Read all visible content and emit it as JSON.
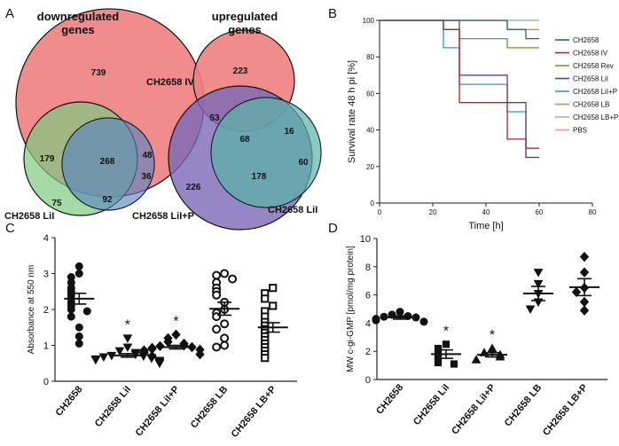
{
  "panel_labels": {
    "a": "A",
    "b": "B",
    "c": "C",
    "d": "D"
  },
  "chart_data": [
    {
      "panel": "A",
      "type": "venn",
      "title": "downregulated genes",
      "sets": [
        "CH2658 IV",
        "CH2658 LiI",
        "CH2658 LiI+P"
      ],
      "set_labels": [
        "CH2658 LiI",
        "CH2658 LiI+P"
      ],
      "regions": {
        "only_IV": 739,
        "IV_and_LiI": 179,
        "all_three": 268,
        "IV_and_LiIP": 48,
        "only_LiIP_a": 36,
        "only_LiI": 75,
        "LiI_and_LiIP": 92
      }
    },
    {
      "panel": "A",
      "type": "venn",
      "title": "upregulated genes",
      "sets": [
        "CH2658 IV",
        "CH2658 LiI+P",
        "CH2658 LiI"
      ],
      "set_labels": [
        "CH2658 IV",
        "CH2658 LiI"
      ],
      "regions": {
        "only_IV": 223,
        "IV_and_LiIP": 53,
        "all_three": 68,
        "IV_and_LiI": 16,
        "only_LiIP": 226,
        "LiI_and_LiIP": 178,
        "only_LiI": 60
      }
    },
    {
      "panel": "B",
      "type": "line",
      "step": true,
      "xlabel": "Time [h]",
      "ylabel": "Survival rate 48 h pi [%]",
      "xlim": [
        0,
        80
      ],
      "ylim": [
        0,
        100
      ],
      "xticks": [
        "0",
        "20",
        "40",
        "60",
        "80"
      ],
      "yticks": [
        "0",
        "20",
        "40",
        "60",
        "80",
        "100"
      ],
      "series": [
        {
          "name": "CH2658",
          "color": "#2b5f8c",
          "x": [
            0,
            48,
            55,
            60
          ],
          "y": [
            100,
            95,
            90,
            90
          ]
        },
        {
          "name": "CH2658 IV",
          "color": "#b22525",
          "x": [
            0,
            24,
            30,
            48,
            55,
            60
          ],
          "y": [
            100,
            95,
            55,
            35,
            30,
            30
          ]
        },
        {
          "name": "CH2658 Rev",
          "color": "#6f9a2d",
          "x": [
            0,
            24,
            30,
            48,
            60
          ],
          "y": [
            100,
            95,
            90,
            85,
            85
          ]
        },
        {
          "name": "CH2658 LiI",
          "color": "#5b3f8f",
          "x": [
            0,
            30,
            48,
            55,
            60
          ],
          "y": [
            100,
            70,
            55,
            25,
            25
          ]
        },
        {
          "name": "CH2658 LiI+P",
          "color": "#2a9fbd",
          "x": [
            0,
            24,
            30,
            48,
            55,
            60
          ],
          "y": [
            100,
            85,
            65,
            50,
            25,
            25
          ]
        },
        {
          "name": "CH2658 LB",
          "color": "#e38a2a",
          "x": [
            0,
            48,
            55,
            60
          ],
          "y": [
            100,
            95,
            95,
            95
          ]
        },
        {
          "name": "CH2658 LB+P",
          "color": "#8fb4da",
          "x": [
            0,
            60
          ],
          "y": [
            100,
            100
          ]
        },
        {
          "name": "PBS",
          "color": "#e79ab7",
          "x": [
            0,
            60
          ],
          "y": [
            100,
            100
          ]
        }
      ]
    },
    {
      "panel": "C",
      "type": "scatter",
      "ylabel": "Absorbance at 550 nm",
      "ylim": [
        0,
        4
      ],
      "yticks": [
        "0",
        "1",
        "2",
        "3",
        "4"
      ],
      "significance": "*",
      "groups": [
        {
          "name": "CH2658",
          "marker": "circle",
          "filled": true,
          "mean": 2.3,
          "sem": 0.15,
          "sig": false,
          "values": [
            3.2,
            3.0,
            2.9,
            2.75,
            2.6,
            2.5,
            2.4,
            2.3,
            2.2,
            2.1,
            2.0,
            1.95,
            1.8,
            1.5,
            1.25,
            1.05
          ]
        },
        {
          "name": "CH2658 LiI",
          "marker": "triangle-down",
          "filled": true,
          "mean": 0.72,
          "sem": 0.05,
          "sig": true,
          "values": [
            1.2,
            0.95,
            0.85,
            0.8,
            0.75,
            0.72,
            0.7,
            0.68,
            0.66,
            0.64,
            0.62,
            0.6,
            0.58,
            0.55,
            0.52,
            0.5
          ]
        },
        {
          "name": "CH2658 LiI+P",
          "marker": "diamond",
          "filled": true,
          "mean": 0.95,
          "sem": 0.05,
          "sig": true,
          "values": [
            1.3,
            1.2,
            1.1,
            1.05,
            1.0,
            0.98,
            0.95,
            0.93,
            0.9,
            0.88,
            0.86,
            0.84,
            0.8,
            0.75,
            0.7
          ]
        },
        {
          "name": "CH2658 LB",
          "marker": "circle",
          "filled": false,
          "mean": 2.02,
          "sem": 0.18,
          "sig": false,
          "values": [
            3.0,
            2.95,
            2.85,
            2.75,
            2.6,
            2.5,
            2.4,
            2.2,
            2.0,
            1.9,
            1.8,
            1.6,
            1.45,
            1.2,
            1.0,
            0.95
          ]
        },
        {
          "name": "CH2658 LB+P",
          "marker": "square",
          "filled": false,
          "mean": 1.5,
          "sem": 0.13,
          "sig": false,
          "values": [
            2.6,
            2.45,
            2.3,
            2.1,
            1.95,
            1.8,
            1.65,
            1.55,
            1.45,
            1.35,
            1.25,
            1.15,
            1.05,
            0.95,
            0.85,
            0.75,
            0.65
          ]
        }
      ]
    },
    {
      "panel": "D",
      "type": "scatter",
      "ylabel": "MW c-gi-GMP [pmol/mg protein]",
      "ylim": [
        0,
        10
      ],
      "yticks": [
        "0",
        "2",
        "4",
        "6",
        "8",
        "10"
      ],
      "significance": "*",
      "groups": [
        {
          "name": "CH2658",
          "marker": "circle",
          "filled": true,
          "mean": 4.4,
          "sem": 0.12,
          "sig": false,
          "values": [
            4.8,
            4.6,
            4.5,
            4.45,
            4.4,
            4.3,
            4.2,
            4.1
          ]
        },
        {
          "name": "CH2658 LiI",
          "marker": "square",
          "filled": true,
          "mean": 1.8,
          "sem": 0.3,
          "sig": true,
          "values": [
            2.5,
            2.2,
            1.8,
            1.5,
            1.2,
            1.1
          ]
        },
        {
          "name": "CH2658 LiI+P",
          "marker": "triangle-up",
          "filled": true,
          "mean": 1.75,
          "sem": 0.15,
          "sig": true,
          "values": [
            2.2,
            1.9,
            1.75,
            1.6,
            1.4
          ]
        },
        {
          "name": "CH2658 LB",
          "marker": "triangle-down",
          "filled": true,
          "mean": 6.1,
          "sem": 0.5,
          "sig": false,
          "values": [
            7.6,
            6.8,
            6.1,
            5.5,
            5.0
          ]
        },
        {
          "name": "CH2658 LB+P",
          "marker": "diamond",
          "filled": true,
          "mean": 6.55,
          "sem": 0.6,
          "sig": false,
          "values": [
            8.7,
            7.6,
            6.5,
            6.2,
            5.5,
            4.9
          ]
        }
      ]
    }
  ]
}
